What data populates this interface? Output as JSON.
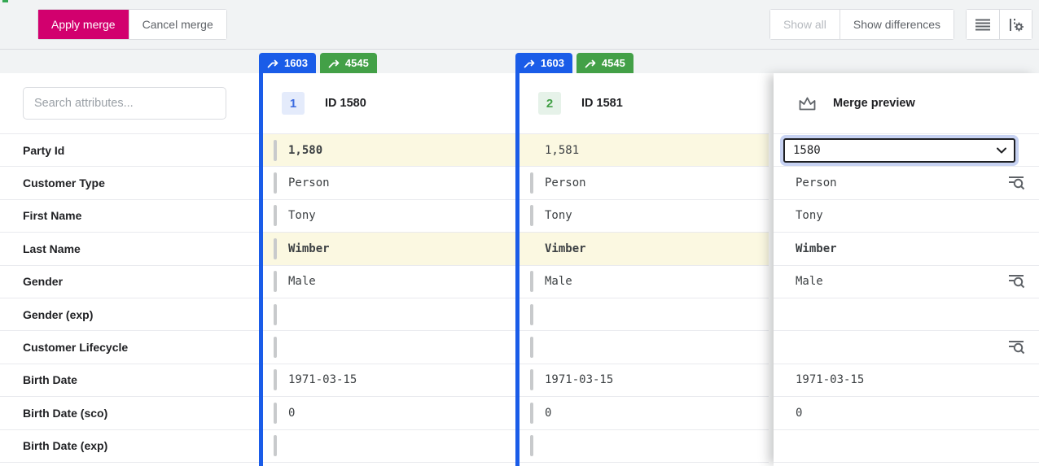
{
  "toolbar": {
    "apply_label": "Apply merge",
    "cancel_label": "Cancel merge",
    "show_all_label": "Show all",
    "show_differences_label": "Show differences"
  },
  "icons": {
    "tab_merge": "merge-arrow",
    "density": "row-density-lines",
    "view_settings": "column-settings-gear",
    "preview": "crown",
    "rule_match": "eq-magnifier",
    "select": "chevron-down"
  },
  "colors": {
    "accent_magenta": "#d2006e",
    "accent_blue": "#1a5ce8",
    "accent_green": "#43a047",
    "highlight_yellow": "#fbf8e1",
    "focus_halo": "#c7d2f2",
    "toolbar_bg": "#f1f3f4"
  },
  "sidebar": {
    "search_placeholder": "Search attributes...",
    "attributes": [
      "Party Id",
      "Customer Type",
      "First Name",
      "Last Name",
      "Gender",
      "Gender (exp)",
      "Customer Lifecycle",
      "Birth Date",
      "Birth Date (sco)",
      "Birth Date (exp)"
    ]
  },
  "records": [
    {
      "chip": "1",
      "id_label": "ID 1580",
      "merge_tabs": [
        {
          "label": "1603"
        },
        {
          "label": "4545"
        }
      ],
      "values": [
        {
          "text": "1,580",
          "highlight": true,
          "bold": true,
          "marker": true
        },
        {
          "text": "Person",
          "marker": true
        },
        {
          "text": "Tony",
          "marker": true
        },
        {
          "text": "Wimber",
          "highlight": true,
          "bold": true,
          "marker": true
        },
        {
          "text": "Male",
          "marker": true
        },
        {
          "text": "",
          "marker": true
        },
        {
          "text": "",
          "marker": true
        },
        {
          "text": "1971-03-15",
          "marker": true
        },
        {
          "text": "0",
          "marker": true
        },
        {
          "text": "",
          "marker": true
        }
      ]
    },
    {
      "chip": "2",
      "id_label": "ID 1581",
      "merge_tabs": [
        {
          "label": "1603"
        },
        {
          "label": "4545"
        }
      ],
      "values": [
        {
          "text": "1,581",
          "highlight": true,
          "marker": false
        },
        {
          "text": "Person",
          "marker": true
        },
        {
          "text": "Tony",
          "marker": true
        },
        {
          "text": "Vimber",
          "highlight": true,
          "bold": true,
          "marker": false
        },
        {
          "text": "Male",
          "marker": true
        },
        {
          "text": "",
          "marker": true
        },
        {
          "text": "",
          "marker": true
        },
        {
          "text": "1971-03-15",
          "marker": true
        },
        {
          "text": "0",
          "marker": true
        },
        {
          "text": "",
          "marker": true
        }
      ]
    }
  ],
  "preview": {
    "title": "Merge preview",
    "rows": [
      {
        "type": "select",
        "value": "1580"
      },
      {
        "text": "Person",
        "eq": true
      },
      {
        "text": "Tony"
      },
      {
        "text": "Wimber",
        "bold": true
      },
      {
        "text": "Male",
        "eq": true
      },
      {
        "text": ""
      },
      {
        "text": "",
        "eq": true
      },
      {
        "text": "1971-03-15"
      },
      {
        "text": "0"
      },
      {
        "text": ""
      }
    ]
  }
}
